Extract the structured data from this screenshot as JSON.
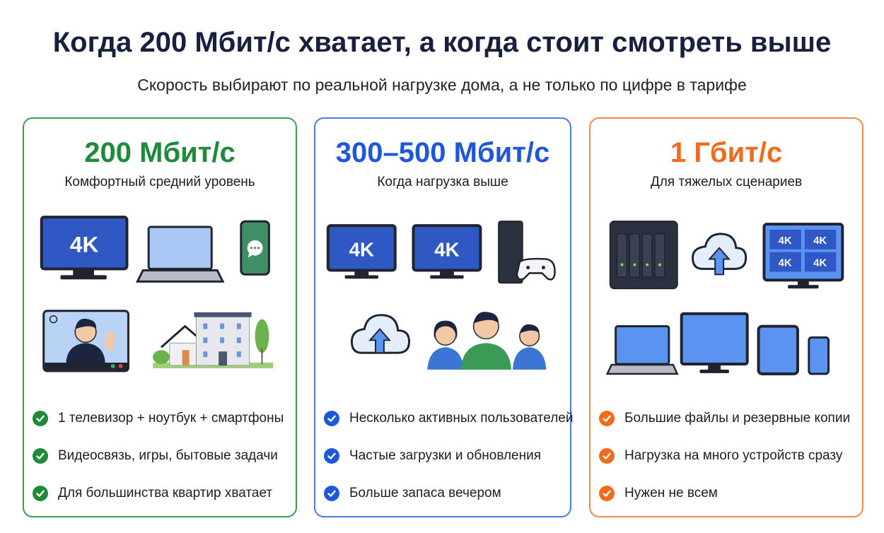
{
  "header": {
    "title": "Когда 200 Мбит/с хватает, а когда стоит смотреть выше",
    "subtitle": "Скорость выбирают по реальной нагрузке дома, а не только по цифре в тарифе"
  },
  "colors": {
    "green": "#1f8a3a",
    "blue": "#1e56dc",
    "orange": "#f26a1b",
    "screen": "#2f58c4",
    "screen_light": "#5b93f0"
  },
  "cards": [
    {
      "speed": "200 Мбит/с",
      "tagline": "Комфортный средний уровень",
      "accent": "#1f8a3a",
      "icons": [
        "tv-4k-icon",
        "laptop-icon",
        "smartphone-chat-icon",
        "video-call-icon",
        "apartment-building-icon"
      ],
      "tv_label": "4K",
      "bullets": [
        "1 телевизор + ноутбук + смартфоны",
        "Видеосвязь, игры, бытовые задачи",
        "Для большинства квартир хватает"
      ]
    },
    {
      "speed": "300–500 Мбит/с",
      "tagline": "Когда нагрузка выше",
      "accent": "#1e56dc",
      "icons": [
        "tv-4k-icon",
        "tv-4k-icon",
        "game-console-icon",
        "cloud-upload-icon",
        "family-users-icon"
      ],
      "tv_label": "4K",
      "bullets": [
        "Несколько активных пользователей",
        "Частые загрузки и обновления",
        "Больше запаса вечером"
      ]
    },
    {
      "speed": "1 Гбит/с",
      "tagline": "Для тяжелых сценариев",
      "accent": "#f26a1b",
      "icons": [
        "nas-storage-icon",
        "cloud-upload-icon",
        "multi-4k-monitor-icon",
        "laptop-icon",
        "desktop-monitor-icon",
        "tablet-icon",
        "smartphone-icon"
      ],
      "tv_label": "4K",
      "bullets": [
        "Большие файлы и резервные копии",
        "Нагрузка на много устройств сразу",
        "Нужен не всем"
      ]
    }
  ]
}
